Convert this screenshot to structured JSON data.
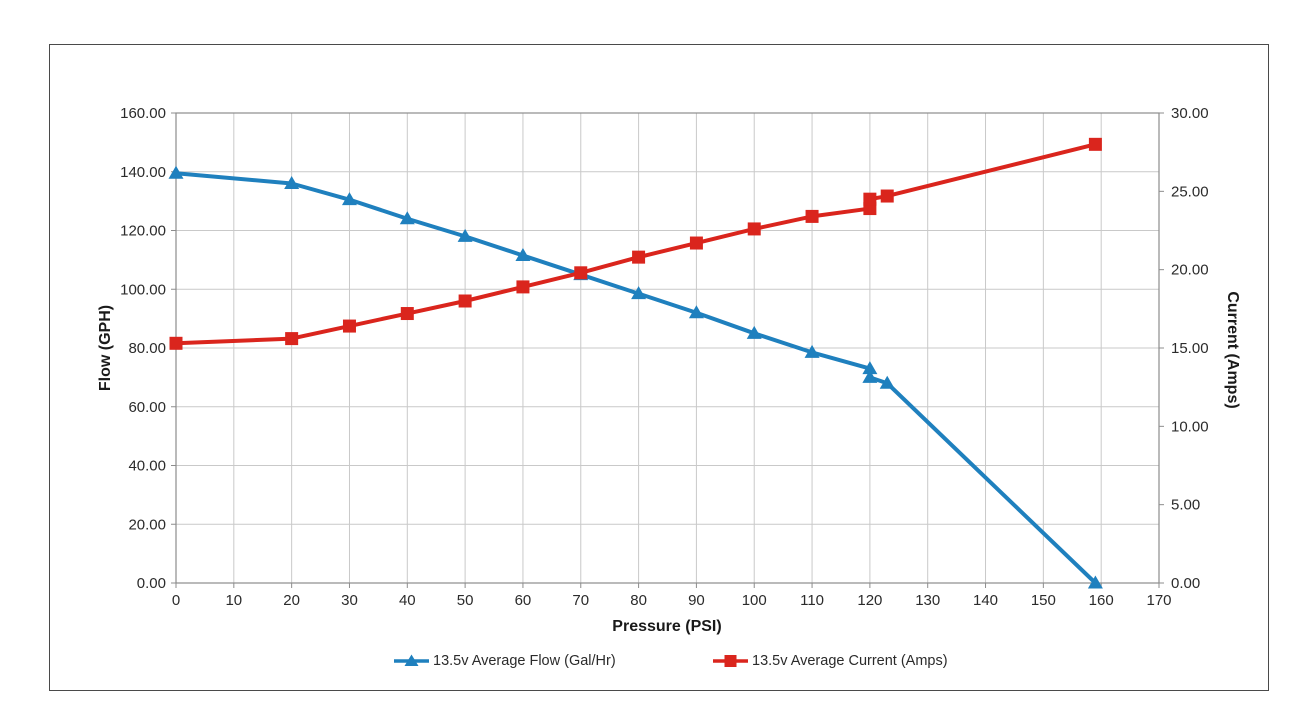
{
  "chart_data": {
    "type": "line",
    "title": "",
    "xlabel": "Pressure (PSI)",
    "ylabel_left": "Flow (GPH)",
    "ylabel_right": "Current (Amps)",
    "x_range": [
      0,
      170
    ],
    "y_left_range": [
      0,
      160
    ],
    "y_right_range": [
      0,
      30
    ],
    "grid": "on",
    "legend_position": "bottom",
    "x_ticks": {
      "values": [
        0,
        10,
        20,
        30,
        40,
        50,
        60,
        70,
        80,
        90,
        100,
        110,
        120,
        130,
        140,
        150,
        160,
        170
      ],
      "labels": [
        "0",
        "10",
        "20",
        "30",
        "40",
        "50",
        "60",
        "70",
        "80",
        "90",
        "100",
        "110",
        "120",
        "130",
        "140",
        "150",
        "160",
        "170"
      ]
    },
    "y_left_ticks": {
      "values": [
        0,
        20,
        40,
        60,
        80,
        100,
        120,
        140,
        160
      ],
      "labels": [
        "0.00",
        "20.00",
        "40.00",
        "60.00",
        "80.00",
        "100.00",
        "120.00",
        "140.00",
        "160.00"
      ]
    },
    "y_right_ticks": {
      "values": [
        0,
        5,
        10,
        15,
        20,
        25,
        30
      ],
      "labels": [
        "0.00",
        "5.00",
        "10.00",
        "15.00",
        "20.00",
        "25.00",
        "30.00"
      ]
    },
    "series": [
      {
        "name": "13.5v Average Flow (Gal/Hr)",
        "axis": "left",
        "color": "#1f80be",
        "marker": "triangle",
        "x": [
          0,
          20,
          30,
          40,
          50,
          60,
          70,
          80,
          90,
          100,
          110,
          120,
          120,
          123,
          159
        ],
        "values": [
          139.5,
          136,
          130.5,
          124,
          118,
          111.5,
          105,
          98.5,
          92,
          85,
          78.5,
          73,
          70,
          68,
          0
        ]
      },
      {
        "name": "13.5v Average Current (Amps)",
        "axis": "right",
        "color": "#da251d",
        "marker": "square",
        "x": [
          0,
          20,
          30,
          40,
          50,
          60,
          70,
          80,
          90,
          100,
          110,
          120,
          120,
          123,
          159
        ],
        "values": [
          15.3,
          15.6,
          16.4,
          17.2,
          18.0,
          18.9,
          19.8,
          20.8,
          21.7,
          22.6,
          23.4,
          23.9,
          24.5,
          24.7,
          28.0
        ]
      }
    ],
    "grid_color": "#c9c9c9",
    "axis_color": "#8c8c8c",
    "tick_label_color": "#2b2b2b"
  },
  "legend": {
    "flow_label": "13.5v Average Flow (Gal/Hr)",
    "current_label": "13.5v Average Current (Amps)"
  }
}
